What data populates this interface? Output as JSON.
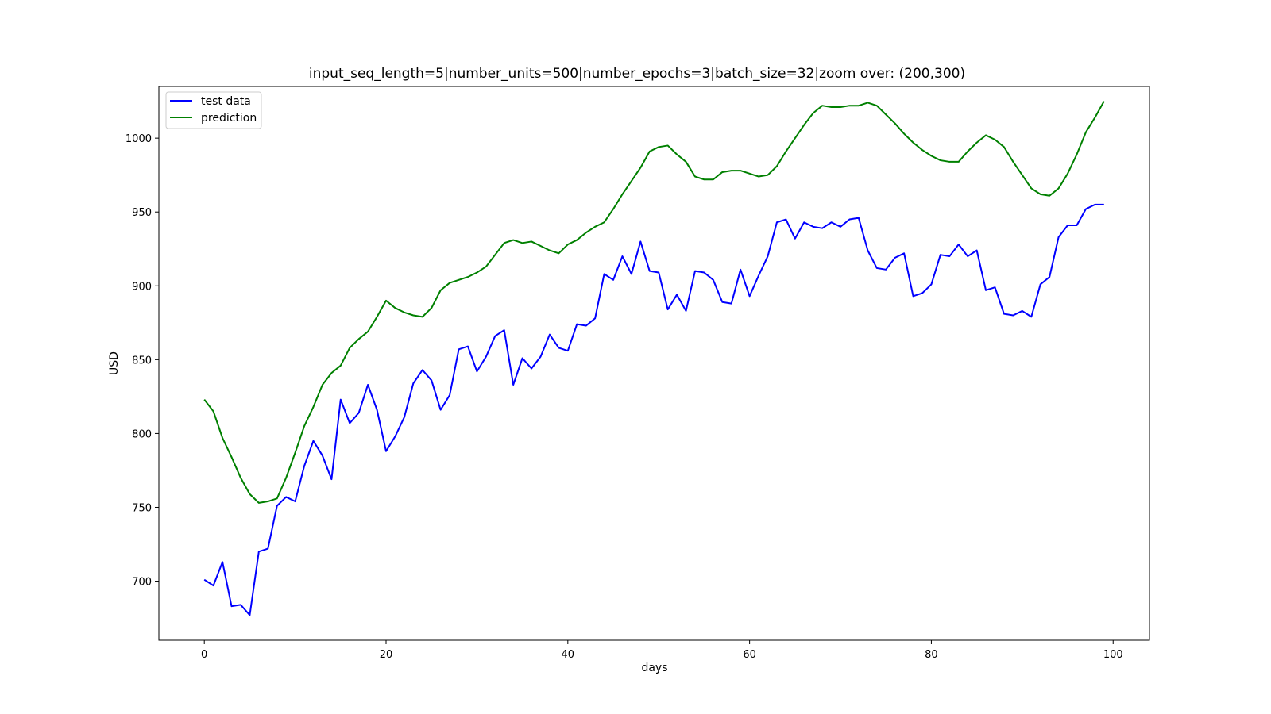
{
  "chart_data": {
    "type": "line",
    "title": "input_seq_length=5|number_units=500|number_epochs=3|batch_size=32|zoom over: (200,300)",
    "xlabel": "days",
    "ylabel": "USD",
    "xlim": [
      -5,
      104
    ],
    "ylim": [
      660,
      1035
    ],
    "xticks": [
      0,
      20,
      40,
      60,
      80,
      100
    ],
    "yticks": [
      700,
      750,
      800,
      850,
      900,
      950,
      1000
    ],
    "grid": false,
    "legend_position": "top-left",
    "series": [
      {
        "name": "test data",
        "color": "#0000ff",
        "values": [
          701,
          697,
          713,
          683,
          684,
          677,
          720,
          722,
          751,
          757,
          754,
          778,
          795,
          785,
          769,
          823,
          807,
          814,
          833,
          816,
          788,
          798,
          811,
          834,
          843,
          836,
          816,
          826,
          857,
          859,
          842,
          852,
          866,
          870,
          833,
          851,
          844,
          852,
          867,
          858,
          856,
          874,
          873,
          878,
          908,
          904,
          920,
          908,
          930,
          910,
          909,
          884,
          894,
          883,
          910,
          909,
          904,
          889,
          888,
          911,
          893,
          907,
          920,
          943,
          945,
          932,
          943,
          940,
          939,
          943,
          940,
          945,
          946,
          924,
          912,
          911,
          919,
          922,
          893,
          895,
          901,
          921,
          920,
          928,
          920,
          924,
          897,
          899,
          881,
          880,
          883,
          879,
          901,
          906,
          933,
          941,
          941,
          952,
          955,
          955
        ]
      },
      {
        "name": "prediction",
        "color": "#008000",
        "values": [
          823,
          815,
          797,
          784,
          770,
          759,
          753,
          754,
          756,
          770,
          787,
          805,
          818,
          833,
          841,
          846,
          858,
          864,
          869,
          879,
          890,
          885,
          882,
          880,
          879,
          885,
          897,
          902,
          904,
          906,
          909,
          913,
          921,
          929,
          931,
          929,
          930,
          927,
          924,
          922,
          928,
          931,
          936,
          940,
          943,
          952,
          962,
          971,
          980,
          991,
          994,
          995,
          989,
          984,
          974,
          972,
          972,
          977,
          978,
          978,
          976,
          974,
          975,
          981,
          991,
          1000,
          1009,
          1017,
          1022,
          1021,
          1021,
          1022,
          1022,
          1024,
          1022,
          1016,
          1010,
          1003,
          997,
          992,
          988,
          985,
          984,
          984,
          991,
          997,
          1002,
          999,
          994,
          984,
          975,
          966,
          962,
          961,
          966,
          976,
          989,
          1004,
          1014,
          1025
        ]
      }
    ]
  }
}
